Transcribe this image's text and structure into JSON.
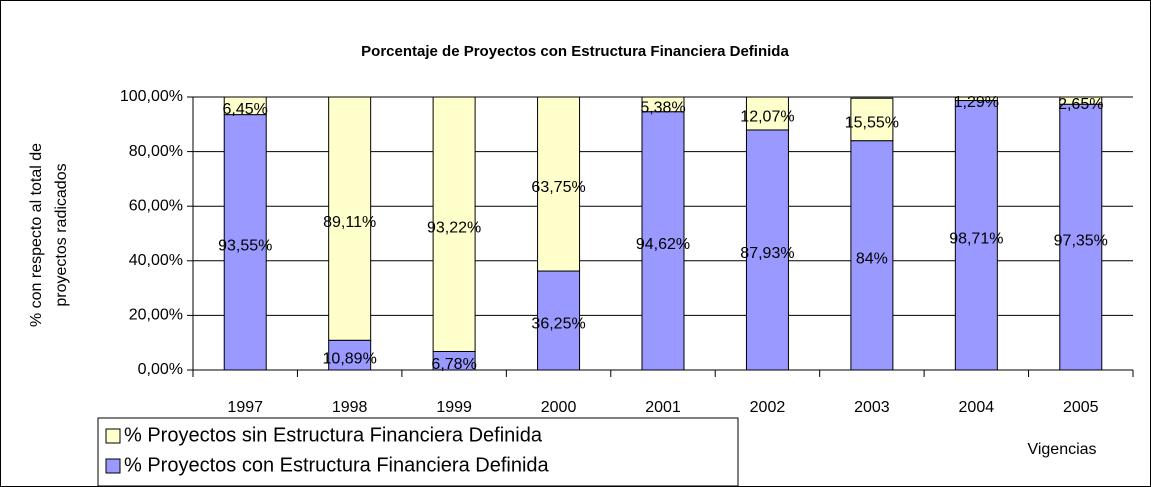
{
  "chart_data": {
    "type": "stacked_bar",
    "title": "Porcentaje de Proyectos con Estructura Financiera Definida",
    "ylabel": [
      "% con respecto al total de",
      "proyectos radicados"
    ],
    "xlabel": "Vigencias",
    "categories": [
      "1997",
      "1998",
      "1999",
      "2000",
      "2001",
      "2002",
      "2003",
      "2004",
      "2005"
    ],
    "series": [
      {
        "name": "% Proyectos con Estructura Financiera Definida",
        "color": "#9999ff",
        "values": [
          93.55,
          10.89,
          6.78,
          36.25,
          94.62,
          87.93,
          84,
          98.71,
          97.35
        ],
        "value_labels": [
          "93,55%",
          "10,89%",
          "6,78%",
          "36,25%",
          "94,62%",
          "87,93%",
          "84%",
          "98,71%",
          "97,35%"
        ]
      },
      {
        "name": "% Proyectos sin Estructura Financiera Definida",
        "color": "#ffffcc",
        "values": [
          6.45,
          89.11,
          93.22,
          63.75,
          5.38,
          12.07,
          15.55,
          1.29,
          2.65
        ],
        "value_labels": [
          "6,45%",
          "89,11%",
          "93,22%",
          "63,75%",
          "5,38%",
          "12,07%",
          "15,55%",
          "1,29%",
          "2,65%"
        ]
      }
    ],
    "ylim": [
      0,
      100
    ],
    "yticks": [
      {
        "value": 0,
        "label": "0,00%"
      },
      {
        "value": 20,
        "label": "20,00%"
      },
      {
        "value": 40,
        "label": "40,00%"
      },
      {
        "value": 60,
        "label": "60,00%"
      },
      {
        "value": 80,
        "label": "80,00%"
      },
      {
        "value": 100,
        "label": "100,00%"
      }
    ],
    "grid": true
  }
}
